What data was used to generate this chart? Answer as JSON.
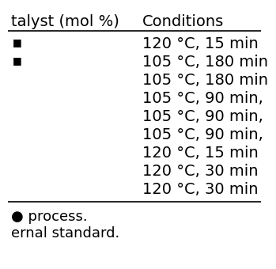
{
  "col1_header": "talyst (mol %)",
  "col2_header": "Conditions",
  "col2_values": [
    "120 °C, 15 min",
    "105 °C, 180 min",
    "105 °C, 180 min",
    "105 °C, 90 min,",
    "105 °C, 90 min,",
    "105 °C, 90 min,",
    "120 °C, 15 min",
    "120 °C, 30 min",
    "120 °C, 30 min"
  ],
  "col1_bullets": [
    true,
    true,
    false,
    false,
    false,
    false,
    false,
    false,
    false
  ],
  "footnotes": [
    "● process.",
    "ernal standard."
  ],
  "background_color": "#ffffff",
  "text_color": "#000000",
  "header_fontsize": 14,
  "row_fontsize": 14,
  "footnote_fontsize": 13
}
